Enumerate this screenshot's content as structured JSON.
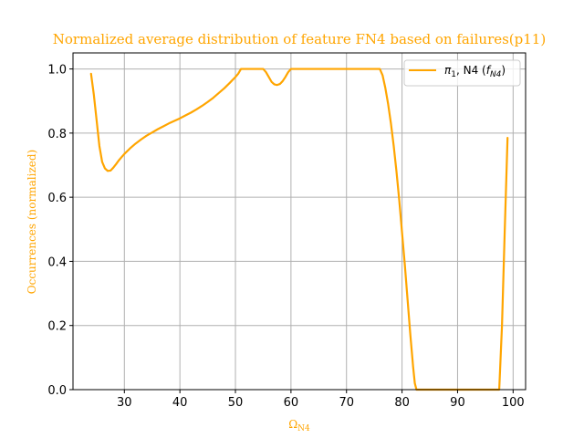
{
  "chart_data": {
    "type": "line",
    "title": "Normalized average distribution of feature FN4 based on failures(p11)",
    "xlabel": {
      "main": "Ω",
      "sub": "N4"
    },
    "ylabel": "Occurrences (normalized)",
    "xlim": [
      20.75,
      102.25
    ],
    "ylim": [
      0.0,
      1.05
    ],
    "xticks": [
      30,
      40,
      50,
      60,
      70,
      80,
      90,
      100
    ],
    "yticks": [
      0.0,
      0.2,
      0.4,
      0.6,
      0.8,
      1.0
    ],
    "xtick_labels": [
      "30",
      "40",
      "50",
      "60",
      "70",
      "80",
      "90",
      "100"
    ],
    "ytick_labels": [
      "0.0",
      "0.2",
      "0.4",
      "0.6",
      "0.8",
      "1.0"
    ],
    "grid": true,
    "legend_position": "top-right",
    "colors": {
      "series": "#FFA500",
      "title": "#FFA500",
      "grid": "#b0b0b0",
      "axes": "#000000"
    },
    "series": [
      {
        "legend": {
          "pi_sub": "1",
          "mid": ", N4 (",
          "f_sub": "N4",
          "end": ")"
        },
        "x": [
          24.0,
          24.5,
          25.0,
          25.5,
          26.0,
          26.5,
          27.0,
          27.5,
          28.0,
          28.5,
          29.0,
          29.5,
          30.0,
          31.0,
          32.0,
          33.0,
          34.0,
          35.0,
          36.0,
          37.0,
          38.0,
          39.0,
          40.0,
          41.0,
          42.0,
          43.0,
          44.0,
          45.0,
          46.0,
          47.0,
          48.0,
          49.0,
          50.0,
          50.5,
          51.0,
          52.0,
          53.0,
          54.0,
          55.0,
          55.5,
          56.0,
          56.5,
          57.0,
          57.5,
          58.0,
          58.5,
          59.0,
          59.5,
          60.0,
          60.5,
          61.0,
          62.0,
          65.0,
          70.0,
          75.0,
          76.0,
          76.5,
          77.0,
          77.5,
          78.0,
          78.5,
          79.0,
          79.5,
          80.0,
          80.5,
          81.0,
          81.5,
          82.0,
          82.3,
          82.6,
          83.0,
          85.0,
          90.0,
          95.0,
          97.0,
          97.5,
          98.0,
          98.5,
          99.0
        ],
        "y": [
          0.985,
          0.92,
          0.84,
          0.76,
          0.71,
          0.69,
          0.682,
          0.683,
          0.692,
          0.703,
          0.715,
          0.725,
          0.735,
          0.752,
          0.767,
          0.78,
          0.792,
          0.802,
          0.812,
          0.821,
          0.83,
          0.838,
          0.846,
          0.855,
          0.864,
          0.874,
          0.885,
          0.897,
          0.91,
          0.925,
          0.94,
          0.957,
          0.975,
          0.985,
          1.0,
          1.0,
          1.0,
          1.0,
          1.0,
          0.99,
          0.975,
          0.96,
          0.952,
          0.95,
          0.953,
          0.962,
          0.975,
          0.99,
          1.0,
          1.0,
          1.0,
          1.0,
          1.0,
          1.0,
          1.0,
          1.0,
          0.98,
          0.94,
          0.89,
          0.83,
          0.76,
          0.68,
          0.59,
          0.49,
          0.39,
          0.28,
          0.17,
          0.07,
          0.02,
          0.0,
          0.0,
          0.0,
          0.0,
          0.0,
          0.0,
          0.0,
          0.2,
          0.5,
          0.785
        ]
      }
    ]
  }
}
